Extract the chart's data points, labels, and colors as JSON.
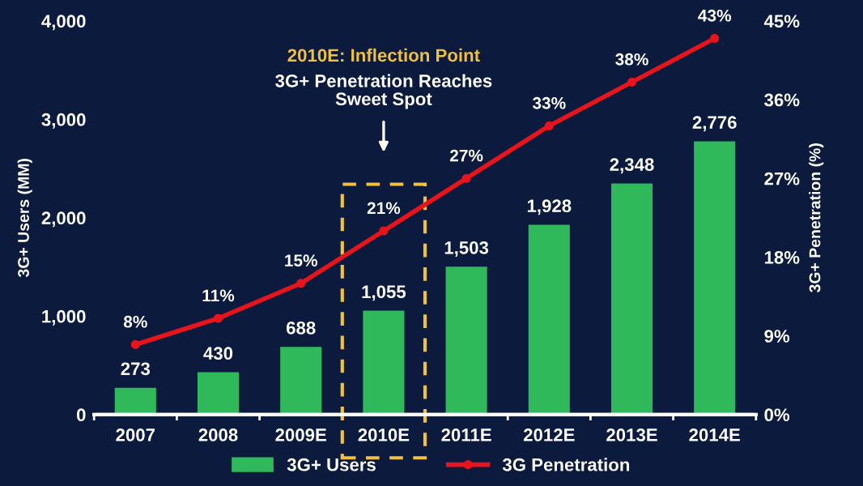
{
  "chart_data": {
    "type": "bar",
    "categories": [
      "2007",
      "2008",
      "2009E",
      "2010E",
      "2011E",
      "2012E",
      "2013E",
      "2014E"
    ],
    "series": [
      {
        "name": "3G+ Users",
        "color": "#2fb95a",
        "values": [
          273,
          430,
          688,
          1055,
          1503,
          1928,
          2348,
          2776
        ],
        "value_labels": [
          "273",
          "430",
          "688",
          "1,055",
          "1,503",
          "1,928",
          "2,348",
          "2,776"
        ]
      },
      {
        "name": "3G Penetration",
        "type": "line",
        "axis": "y2",
        "color": "#e8141c",
        "values": [
          8,
          11,
          15,
          21,
          27,
          33,
          38,
          43
        ],
        "value_labels": [
          "8%",
          "11%",
          "15%",
          "21%",
          "27%",
          "33%",
          "38%",
          "43%"
        ]
      }
    ],
    "ylabel": "3G+ Users (MM)",
    "y2label": "3G+ Penetration (%)",
    "ylim": [
      0,
      4000
    ],
    "yticks": [
      0,
      {
        "value": 1000,
        "label": "1,000"
      },
      {
        "value": 2000,
        "label": "2,000"
      },
      {
        "value": 3000,
        "label": "3,000"
      },
      {
        "value": 4000,
        "label": "4,000"
      }
    ],
    "y2lim": [
      0,
      45
    ],
    "y2ticks": [
      {
        "value": 0,
        "label": "0%"
      },
      {
        "value": 9,
        "label": "9%"
      },
      {
        "value": 18,
        "label": "18%"
      },
      {
        "value": 27,
        "label": "27%"
      },
      {
        "value": 36,
        "label": "36%"
      },
      {
        "value": 45,
        "label": "45%"
      }
    ],
    "annotations": [
      "2010E: Inflection Point",
      "3G+ Penetration Reaches\nSweet Spot"
    ],
    "marker": "circle",
    "line_style": "solid",
    "grid": false,
    "legend": "bottom"
  }
}
